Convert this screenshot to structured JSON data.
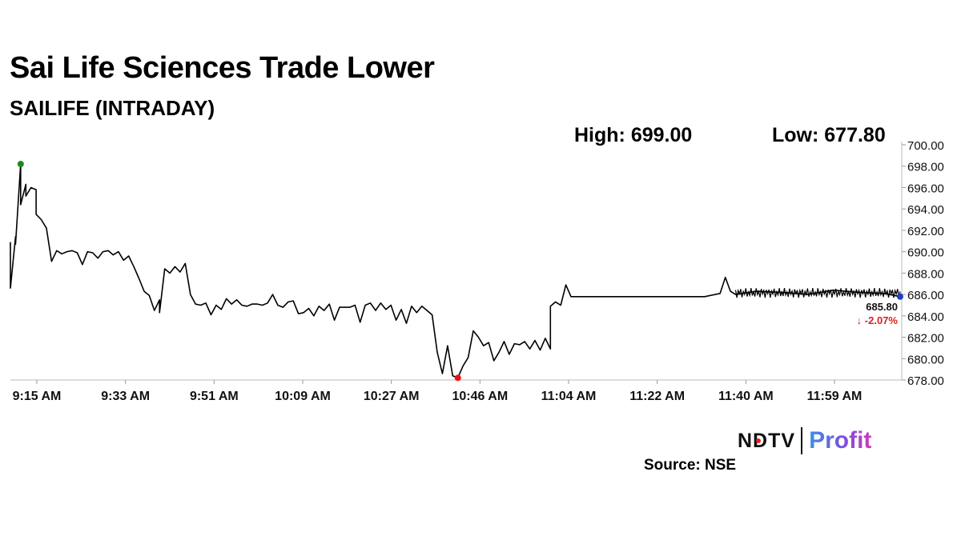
{
  "header": {
    "title": "Sai Life Sciences Trade Lower",
    "subtitle": "SAILIFE (INTRADAY)",
    "high_label": "High: 699.00",
    "low_label": "Low: 677.80"
  },
  "footer": {
    "source": "Source: NSE",
    "logo_left": "NDTV",
    "logo_right": "Profit"
  },
  "colors": {
    "line": "#000000",
    "high_marker": "#1a8a1a",
    "low_marker": "#ee1111",
    "last_marker": "#1f3fbf",
    "change_text": "#d81f1f"
  },
  "chart_data": {
    "type": "line",
    "title": "Sai Life Sciences Trade Lower",
    "subtitle": "SAILIFE (INTRADAY)",
    "xlabel": "",
    "ylabel": "",
    "ylim": [
      678,
      700
    ],
    "yticks": [
      "678.00",
      "680.00",
      "682.00",
      "684.00",
      "686.00",
      "688.00",
      "690.00",
      "692.00",
      "694.00",
      "696.00",
      "698.00",
      "700.00"
    ],
    "xticks": [
      "9:15 AM",
      "9:33 AM",
      "9:51 AM",
      "10:09 AM",
      "10:27 AM",
      "10:46 AM",
      "11:04 AM",
      "11:22 AM",
      "11:40 AM",
      "11:59 AM"
    ],
    "grid": false,
    "last_price": "685.80",
    "change": "-2.07%",
    "change_arrow": "↓",
    "high_point": {
      "time": "9:17 AM",
      "value": 698.2
    },
    "low_point": {
      "time": "10:42 AM",
      "value": 678.2
    },
    "series": [
      {
        "values": [
          [
            "9:15",
            690.9
          ],
          [
            "9:15",
            686.6
          ],
          [
            "9:16",
            691.4
          ],
          [
            "9:16",
            690.7
          ],
          [
            "9:17",
            698.2
          ],
          [
            "9:17",
            694.4
          ],
          [
            "9:18",
            696.3
          ],
          [
            "9:18",
            695.2
          ],
          [
            "9:19",
            696.0
          ],
          [
            "9:20",
            695.8
          ],
          [
            "9:20",
            693.5
          ],
          [
            "9:21",
            693.0
          ],
          [
            "9:22",
            692.2
          ],
          [
            "9:23",
            689.1
          ],
          [
            "9:24",
            690.1
          ],
          [
            "9:25",
            689.8
          ],
          [
            "9:26",
            690.0
          ],
          [
            "9:27",
            690.1
          ],
          [
            "9:28",
            689.9
          ],
          [
            "9:29",
            688.8
          ],
          [
            "9:30",
            690.0
          ],
          [
            "9:31",
            689.9
          ],
          [
            "9:32",
            689.4
          ],
          [
            "9:33",
            690.0
          ],
          [
            "9:34",
            690.1
          ],
          [
            "9:35",
            689.7
          ],
          [
            "9:36",
            690.0
          ],
          [
            "9:37",
            689.2
          ],
          [
            "9:38",
            689.6
          ],
          [
            "9:39",
            688.6
          ],
          [
            "9:40",
            687.5
          ],
          [
            "9:41",
            686.3
          ],
          [
            "9:42",
            685.9
          ],
          [
            "9:43",
            684.5
          ],
          [
            "9:44",
            685.5
          ],
          [
            "9:44",
            684.3
          ],
          [
            "9:45",
            688.4
          ],
          [
            "9:46",
            688.0
          ],
          [
            "9:47",
            688.6
          ],
          [
            "9:48",
            688.1
          ],
          [
            "9:49",
            688.9
          ],
          [
            "9:50",
            686.0
          ],
          [
            "9:51",
            685.1
          ],
          [
            "9:52",
            685.0
          ],
          [
            "9:53",
            685.2
          ],
          [
            "9:54",
            684.1
          ],
          [
            "9:55",
            685.0
          ],
          [
            "9:56",
            684.6
          ],
          [
            "9:57",
            685.6
          ],
          [
            "9:58",
            685.1
          ],
          [
            "9:59",
            685.5
          ],
          [
            "10:00",
            685.0
          ],
          [
            "10:01",
            684.9
          ],
          [
            "10:02",
            685.1
          ],
          [
            "10:03",
            685.1
          ],
          [
            "10:04",
            685.0
          ],
          [
            "10:05",
            685.2
          ],
          [
            "10:06",
            686.0
          ],
          [
            "10:07",
            685.0
          ],
          [
            "10:08",
            684.8
          ],
          [
            "10:09",
            685.3
          ],
          [
            "10:10",
            685.4
          ],
          [
            "10:11",
            684.2
          ],
          [
            "10:12",
            684.3
          ],
          [
            "10:13",
            684.7
          ],
          [
            "10:14",
            684.0
          ],
          [
            "10:15",
            684.9
          ],
          [
            "10:16",
            684.5
          ],
          [
            "10:17",
            685.1
          ],
          [
            "10:18",
            683.6
          ],
          [
            "10:19",
            684.8
          ],
          [
            "10:20",
            684.8
          ],
          [
            "10:21",
            684.8
          ],
          [
            "10:22",
            685.0
          ],
          [
            "10:23",
            683.4
          ],
          [
            "10:24",
            685.0
          ],
          [
            "10:25",
            685.2
          ],
          [
            "10:26",
            684.5
          ],
          [
            "10:27",
            685.2
          ],
          [
            "10:28",
            684.6
          ],
          [
            "10:29",
            685.0
          ],
          [
            "10:30",
            683.6
          ],
          [
            "10:31",
            684.6
          ],
          [
            "10:32",
            683.3
          ],
          [
            "10:33",
            684.9
          ],
          [
            "10:34",
            684.3
          ],
          [
            "10:35",
            684.9
          ],
          [
            "10:36",
            684.5
          ],
          [
            "10:37",
            684.1
          ],
          [
            "10:38",
            680.6
          ],
          [
            "10:39",
            678.6
          ],
          [
            "10:40",
            681.2
          ],
          [
            "10:41",
            678.4
          ],
          [
            "10:42",
            678.2
          ],
          [
            "10:43",
            679.3
          ],
          [
            "10:44",
            680.1
          ],
          [
            "10:45",
            682.6
          ],
          [
            "10:46",
            682.0
          ],
          [
            "10:47",
            681.2
          ],
          [
            "10:48",
            681.5
          ],
          [
            "10:49",
            679.8
          ],
          [
            "10:50",
            680.6
          ],
          [
            "10:51",
            681.6
          ],
          [
            "10:52",
            680.4
          ],
          [
            "10:53",
            681.4
          ],
          [
            "10:54",
            681.3
          ],
          [
            "10:55",
            681.6
          ],
          [
            "10:56",
            680.9
          ],
          [
            "10:57",
            681.7
          ],
          [
            "10:58",
            680.8
          ],
          [
            "10:59",
            681.9
          ],
          [
            "11:00",
            680.9
          ],
          [
            "11:00",
            684.9
          ],
          [
            "11:01",
            685.3
          ],
          [
            "11:02",
            685.0
          ],
          [
            "11:03",
            686.9
          ],
          [
            "11:04",
            685.8
          ],
          [
            "11:10",
            685.8
          ],
          [
            "11:20",
            685.8
          ],
          [
            "11:30",
            685.8
          ],
          [
            "11:33",
            686.1
          ],
          [
            "11:34",
            687.6
          ],
          [
            "11:35",
            686.3
          ],
          [
            "11:36",
            686.0
          ],
          [
            "11:40",
            686.3
          ],
          [
            "11:45",
            686.2
          ],
          [
            "11:50",
            686.0
          ],
          [
            "11:55",
            686.4
          ],
          [
            "12:00",
            686.2
          ],
          [
            "12:05",
            686.1
          ],
          [
            "12:08",
            685.8
          ]
        ]
      }
    ]
  }
}
